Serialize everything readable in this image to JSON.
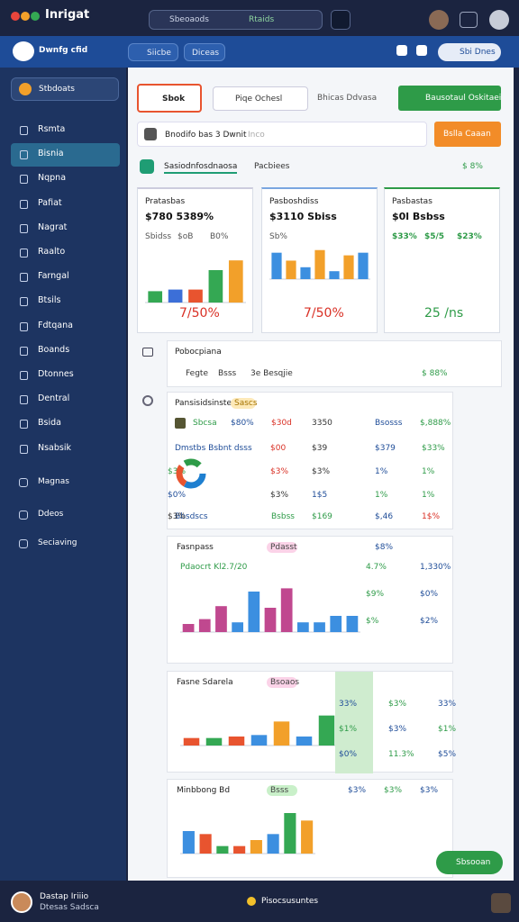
{
  "top_bar": {
    "app_name": "Inrigat",
    "search": "Sbeoaods",
    "search_tag": "Rtaids"
  },
  "nav_bar": {
    "brand": "Dwnfg cfid",
    "tabs": [
      "Siicbe",
      "Diceas"
    ],
    "right": "Sbi Dnes"
  },
  "sidebar": {
    "selector": "Stbdoats",
    "items": [
      "Rsmta",
      "Bisnia",
      "Nqpna",
      "Pafiat",
      "Nagrat",
      "Raalto",
      "Farngal",
      "Btsils",
      "Fdtqana",
      "Boands",
      "Dtonnes",
      "Dentral",
      "Bsida",
      "Nsabsik"
    ],
    "groups": [
      "Magnas",
      "Ddeos",
      "Seciaving"
    ]
  },
  "toolbar": {
    "tab": "Sbok",
    "filter": "Piqe Ochesl",
    "link": "Bhicas Ddvasa",
    "primary_button": "Bausotaul Oskitaei",
    "search": "Bnodifo bas 3 Dwnit",
    "search_hint": "Inco",
    "action_button": "Bslla Caaan"
  },
  "section": {
    "title": "Sasiodnfosdnaosa",
    "subtitle": "Pacbiees",
    "stat": "$ 8%"
  },
  "cards": [
    {
      "title": "Pratasbas",
      "value": "$780 5389%",
      "legend": [
        "Sbidss",
        "$oB",
        "B0%"
      ],
      "values": [
        14,
        16,
        16,
        40,
        52
      ],
      "colors": [
        "#34a853",
        "#3c6fd8",
        "#e8542f",
        "#34a853",
        "#f2a02a"
      ],
      "big": "7/50%"
    },
    {
      "title": "Pasboshdiss",
      "value": "$3110 Sbiss",
      "legend": [
        "Sb%"
      ],
      "values": [
        40,
        28,
        18,
        44,
        12,
        36,
        40
      ],
      "colors": [
        "#3c8fe0",
        "#f2a02a",
        "#3c8fe0",
        "#f2a02a",
        "#3c8fe0",
        "#f2a02a",
        "#3c8fe0"
      ],
      "big": "7/50%"
    },
    {
      "title": "Pasbastas",
      "value": "$0l Bsbss",
      "legend": [
        "$33%",
        "$5/5",
        "$23%"
      ],
      "big": "25 /ns"
    }
  ],
  "info_panel": {
    "title": "Pobocpiana",
    "items": [
      "Fegte",
      "Bsss",
      "3e Besqjie"
    ],
    "stat": "$ 88%"
  },
  "table_panel": {
    "title": "Pansisidsinsted",
    "tag": "Sascs",
    "rows": [
      [
        "Sbcsa",
        "$80%",
        "$30d",
        "3350",
        "Bsosss",
        "$,888%"
      ],
      [
        "Dmstbs Bsbnt dsss",
        "$00",
        "$39",
        "$379",
        "$33%"
      ],
      [
        "$3%",
        "$3%",
        "1%",
        "1%",
        "$3%"
      ],
      [
        "$3%",
        "1$5",
        "1%",
        "1%",
        "$0%"
      ],
      [
        "Bbsdscs",
        "Bsbss",
        "$169",
        "$,46",
        "1$%",
        "$3%"
      ]
    ]
  },
  "chart_panels": [
    {
      "title": "Fasnpass",
      "tag": "Pdasst",
      "headline": "Pdaocrt Kl2.7/20",
      "values": [
        10,
        16,
        32,
        12,
        50,
        30,
        54,
        12,
        12,
        20,
        20
      ],
      "colors": [
        "#c0488f",
        "#c0488f",
        "#c0488f",
        "#3c8fe0",
        "#3c8fe0",
        "#c0488f",
        "#c0488f",
        "#3c8fe0",
        "#3c8fe0",
        "#3c8fe0",
        "#3c8fe0"
      ],
      "right": [
        "$8%",
        "4.7%",
        "1,330%",
        "$9%",
        "$0%",
        "$%",
        "$2%"
      ]
    },
    {
      "title": "Fasne Sdarela",
      "tag": "Bsoaos",
      "values": [
        10,
        10,
        12,
        14,
        32,
        12,
        40,
        36
      ],
      "colors": [
        "#e8542f",
        "#34a853",
        "#e8542f",
        "#3c8fe0",
        "#f2a02a",
        "#3c8fe0",
        "#34a853",
        "#f2a02a"
      ],
      "right": [
        "33%",
        "$3%",
        "33%",
        "$1%",
        "$3%",
        "$1%",
        "$0%",
        "11.3%",
        "$5%"
      ]
    },
    {
      "title": "Minbbong Bd",
      "tag": "Bsss",
      "values": [
        30,
        26,
        10,
        10,
        18,
        26,
        54,
        44
      ],
      "colors": [
        "#3c8fe0",
        "#e8542f",
        "#34a853",
        "#e8542f",
        "#f2a02a",
        "#3c8fe0",
        "#34a853",
        "#f2a02a"
      ],
      "right": [
        "$3%",
        "$3%",
        "$3%"
      ]
    }
  ],
  "footer": {
    "user": "Dastap Iriiio",
    "role": "Dtesas Sadsca",
    "status": "Pisocsusuntes",
    "fab": "Sbsooan"
  }
}
